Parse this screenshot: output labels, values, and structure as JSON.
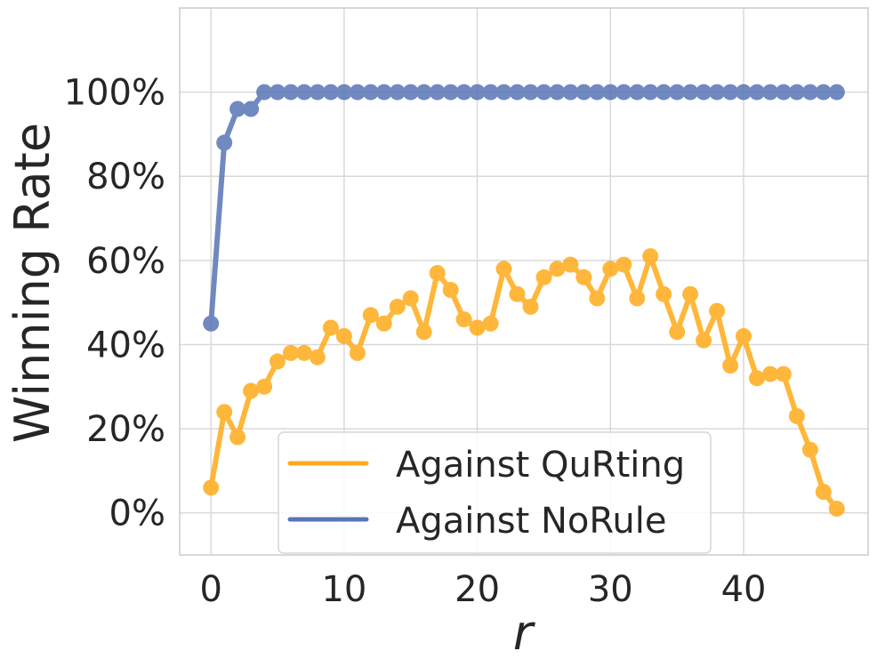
{
  "chart_data": {
    "type": "line",
    "title": "",
    "xlabel": "r",
    "ylabel": "Winning Rate",
    "xlim": [
      -2.35,
      49.35
    ],
    "ylim": [
      -10,
      120
    ],
    "xticks": [
      0,
      10,
      20,
      30,
      40
    ],
    "xtick_labels": [
      "0",
      "10",
      "20",
      "30",
      "40"
    ],
    "yticks": [
      0,
      20,
      40,
      60,
      80,
      100
    ],
    "ytick_labels": [
      "0%",
      "20%",
      "40%",
      "60%",
      "80%",
      "100%"
    ],
    "grid": true,
    "legend_position": "lower center",
    "series": [
      {
        "name": "Against QuRting",
        "color": "#ffab19",
        "x": [
          0,
          1,
          2,
          3,
          4,
          5,
          6,
          7,
          8,
          9,
          10,
          11,
          12,
          13,
          14,
          15,
          16,
          17,
          18,
          19,
          20,
          21,
          22,
          23,
          24,
          25,
          26,
          27,
          28,
          29,
          30,
          31,
          32,
          33,
          34,
          35,
          36,
          37,
          38,
          39,
          40,
          41,
          42,
          43,
          44,
          45,
          46,
          47
        ],
        "values": [
          6,
          24,
          18,
          29,
          30,
          36,
          38,
          38,
          37,
          44,
          42,
          38,
          47,
          45,
          49,
          51,
          43,
          57,
          53,
          46,
          44,
          45,
          58,
          52,
          49,
          56,
          58,
          59,
          56,
          51,
          58,
          59,
          51,
          61,
          52,
          43,
          52,
          41,
          48,
          35,
          42,
          32,
          33,
          33,
          23,
          15,
          5,
          1
        ]
      },
      {
        "name": "Against NoRule",
        "color": "#5875b6",
        "x": [
          0,
          1,
          2,
          3,
          4,
          5,
          6,
          7,
          8,
          9,
          10,
          11,
          12,
          13,
          14,
          15,
          16,
          17,
          18,
          19,
          20,
          21,
          22,
          23,
          24,
          25,
          26,
          27,
          28,
          29,
          30,
          31,
          32,
          33,
          34,
          35,
          36,
          37,
          38,
          39,
          40,
          41,
          42,
          43,
          44,
          45,
          46,
          47
        ],
        "values": [
          45,
          88,
          96,
          96,
          100,
          100,
          100,
          100,
          100,
          100,
          100,
          100,
          100,
          100,
          100,
          100,
          100,
          100,
          100,
          100,
          100,
          100,
          100,
          100,
          100,
          100,
          100,
          100,
          100,
          100,
          100,
          100,
          100,
          100,
          100,
          100,
          100,
          100,
          100,
          100,
          100,
          100,
          100,
          100,
          100,
          100,
          100,
          100
        ]
      }
    ]
  }
}
